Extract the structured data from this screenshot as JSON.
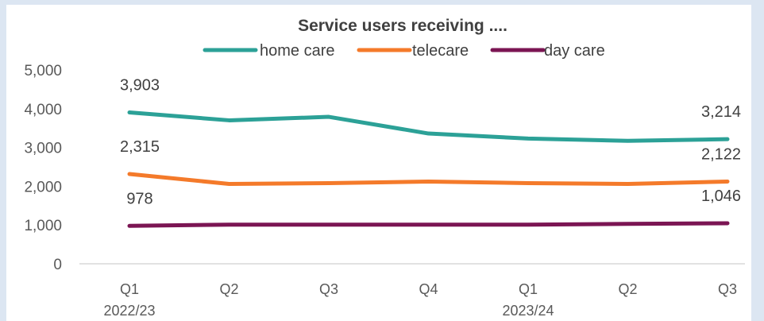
{
  "chart_data": {
    "type": "line",
    "title": "Service users receiving ....",
    "xlabel": "",
    "ylabel": "",
    "categories": [
      "Q1",
      "Q2",
      "Q3",
      "Q4",
      "Q1",
      "Q2",
      "Q3"
    ],
    "year_labels": [
      {
        "label": "2022/23",
        "category_index": 0
      },
      {
        "label": "2023/24",
        "category_index": 4
      }
    ],
    "ylim": [
      0,
      5000
    ],
    "yticks": [
      0,
      1000,
      2000,
      3000,
      4000,
      5000
    ],
    "ytick_labels": [
      "0",
      "1,000",
      "2,000",
      "3,000",
      "4,000",
      "5,000"
    ],
    "grid": false,
    "legend_position": "top",
    "series": [
      {
        "name": "home care",
        "color": "#2ca197",
        "values": [
          3903,
          3700,
          3790,
          3360,
          3230,
          3170,
          3214
        ],
        "data_labels": [
          {
            "index": 0,
            "text": "3,903"
          },
          {
            "index": 6,
            "text": "3,214"
          }
        ]
      },
      {
        "name": "telecare",
        "color": "#f47a2a",
        "values": [
          2315,
          2060,
          2080,
          2120,
          2080,
          2060,
          2122
        ],
        "data_labels": [
          {
            "index": 0,
            "text": "2,315"
          },
          {
            "index": 6,
            "text": "2,122"
          }
        ]
      },
      {
        "name": "day care",
        "color": "#7b1553",
        "values": [
          978,
          1010,
          1010,
          1010,
          1010,
          1030,
          1046
        ],
        "data_labels": [
          {
            "index": 0,
            "text": "978"
          },
          {
            "index": 6,
            "text": "1,046"
          }
        ]
      }
    ]
  }
}
